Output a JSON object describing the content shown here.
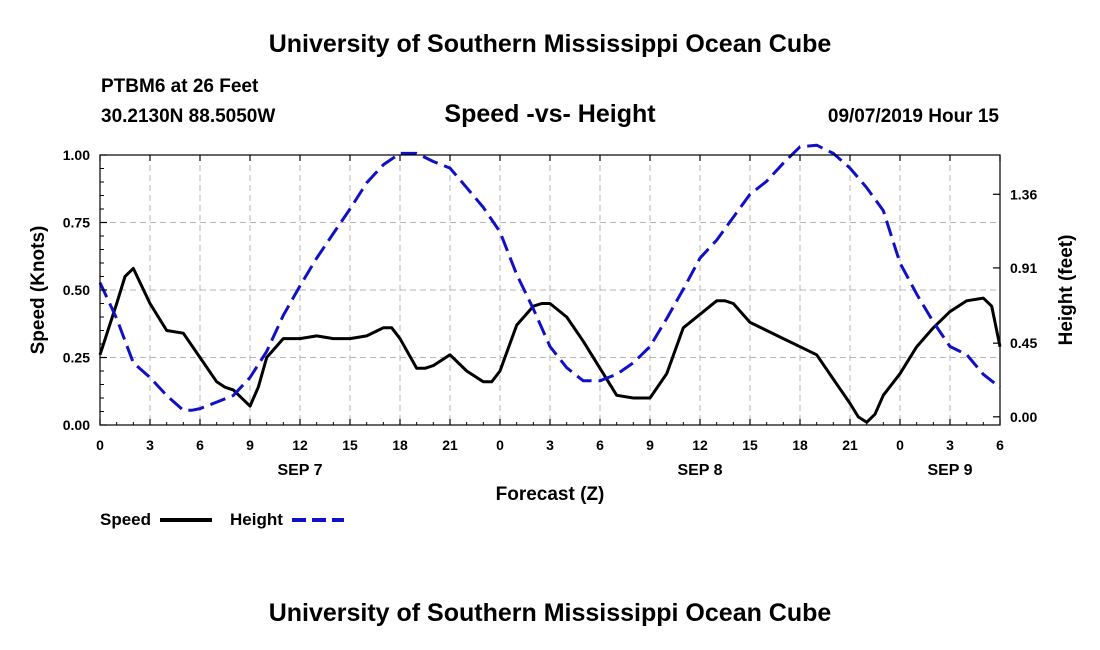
{
  "header": {
    "title": "University of Southern Mississippi Ocean Cube",
    "station": "PTBM6 at 26 Feet",
    "coords": "30.2130N 88.5050W",
    "datetime": "09/07/2019 Hour 15"
  },
  "footer": {
    "title": "University of Southern Mississippi Ocean Cube"
  },
  "colors": {
    "speed": "#000000",
    "height": "#1010c8",
    "grid": "#b4b4b4"
  },
  "chart_data": {
    "type": "line",
    "title": "Speed -vs- Height",
    "xlabel": "Forecast (Z)",
    "ylabel": "Speed (Knots)",
    "y2label": "Height (feet)",
    "xlim": [
      0,
      54
    ],
    "ylim": [
      0,
      1
    ],
    "y2lim": [
      -0.05,
      1.6
    ],
    "grid": true,
    "x_ticks": [
      0,
      3,
      6,
      9,
      12,
      15,
      18,
      21,
      24,
      27,
      30,
      33,
      36,
      39,
      42,
      45,
      48,
      51,
      54
    ],
    "x_tick_labels": [
      "0",
      "3",
      "6",
      "9",
      "12",
      "15",
      "18",
      "21",
      "0",
      "3",
      "6",
      "9",
      "12",
      "15",
      "18",
      "21",
      "0",
      "3",
      "6"
    ],
    "date_labels": [
      {
        "x": 12,
        "label": "SEP 7"
      },
      {
        "x": 36,
        "label": "SEP 8"
      },
      {
        "x": 51,
        "label": "SEP 9"
      }
    ],
    "y_ticks": [
      0,
      0.25,
      0.5,
      0.75,
      1
    ],
    "y_tick_labels": [
      "0.00",
      "0.25",
      "0.50",
      "0.75",
      "1.00"
    ],
    "y2_ticks": [
      0,
      0.45,
      0.91,
      1.36
    ],
    "y2_tick_labels": [
      "0.00",
      "0.45",
      "0.91",
      "1.36"
    ],
    "legend": {
      "position": "bottom-left",
      "entries": [
        {
          "name": "Speed",
          "style": "solid"
        },
        {
          "name": "Height",
          "style": "dashed"
        }
      ]
    },
    "series": [
      {
        "name": "Speed",
        "axis": "left",
        "x": [
          0,
          1,
          1.5,
          2,
          3,
          4,
          5,
          6,
          7,
          7.5,
          8,
          9,
          9.5,
          10,
          11,
          12,
          13,
          14,
          15,
          16,
          17,
          17.5,
          18,
          19,
          19.5,
          20,
          21,
          22,
          23,
          23.5,
          24,
          25,
          26,
          26.5,
          27,
          28,
          29,
          30,
          31,
          32,
          33,
          34,
          35,
          36,
          37,
          37.5,
          38,
          39,
          40,
          41,
          42,
          43,
          44,
          45,
          45.5,
          46,
          46.5,
          47,
          48,
          49,
          50,
          51,
          52,
          53,
          53.5,
          54
        ],
        "values": [
          0.26,
          0.45,
          0.55,
          0.58,
          0.45,
          0.35,
          0.34,
          0.25,
          0.16,
          0.14,
          0.13,
          0.07,
          0.14,
          0.25,
          0.32,
          0.32,
          0.33,
          0.32,
          0.32,
          0.33,
          0.36,
          0.36,
          0.32,
          0.21,
          0.21,
          0.22,
          0.26,
          0.2,
          0.16,
          0.16,
          0.2,
          0.37,
          0.44,
          0.45,
          0.45,
          0.4,
          0.31,
          0.21,
          0.11,
          0.1,
          0.1,
          0.19,
          0.36,
          0.41,
          0.46,
          0.46,
          0.45,
          0.38,
          0.35,
          0.32,
          0.29,
          0.26,
          0.17,
          0.08,
          0.03,
          0.01,
          0.04,
          0.11,
          0.19,
          0.29,
          0.36,
          0.42,
          0.46,
          0.47,
          0.44,
          0.29
        ]
      },
      {
        "name": "Height",
        "axis": "right",
        "x": [
          0,
          1,
          2,
          3,
          4,
          5,
          5.5,
          6,
          7,
          8,
          9,
          10,
          11,
          12,
          13,
          14,
          15,
          16,
          17,
          18,
          19,
          20,
          21,
          22,
          23,
          24,
          25,
          26,
          27,
          28,
          29,
          30,
          30.5,
          31,
          32,
          33,
          34,
          35,
          36,
          37,
          38,
          39,
          40,
          41,
          42,
          43,
          44,
          45,
          46,
          47,
          48,
          49,
          50,
          51,
          52,
          53,
          54
        ],
        "values": [
          0.82,
          0.6,
          0.33,
          0.24,
          0.13,
          0.04,
          0.04,
          0.05,
          0.09,
          0.13,
          0.24,
          0.4,
          0.62,
          0.8,
          0.97,
          1.12,
          1.27,
          1.43,
          1.54,
          1.61,
          1.61,
          1.56,
          1.52,
          1.4,
          1.28,
          1.13,
          0.87,
          0.66,
          0.43,
          0.3,
          0.22,
          0.22,
          0.24,
          0.26,
          0.33,
          0.43,
          0.6,
          0.78,
          0.97,
          1.08,
          1.22,
          1.36,
          1.44,
          1.55,
          1.65,
          1.66,
          1.61,
          1.52,
          1.4,
          1.26,
          0.94,
          0.75,
          0.58,
          0.43,
          0.38,
          0.26,
          0.18
        ]
      }
    ]
  }
}
